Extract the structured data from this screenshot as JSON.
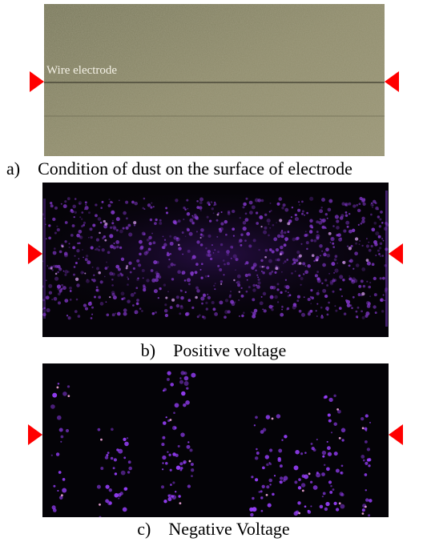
{
  "panel_a": {
    "wire_label": "Wire electrode",
    "caption_label": "a)",
    "caption_text": "Condition of dust on the surface of electrode",
    "surface_color": "#8c8a6c"
  },
  "panel_b": {
    "caption_label": "b)",
    "caption_text": "Positive voltage",
    "glow_color": "#8a3bd6"
  },
  "panel_c": {
    "caption_label": "c)",
    "caption_text": "Negative Voltage",
    "glow_color": "#9a40ff"
  },
  "marker_color": "#ff0000"
}
